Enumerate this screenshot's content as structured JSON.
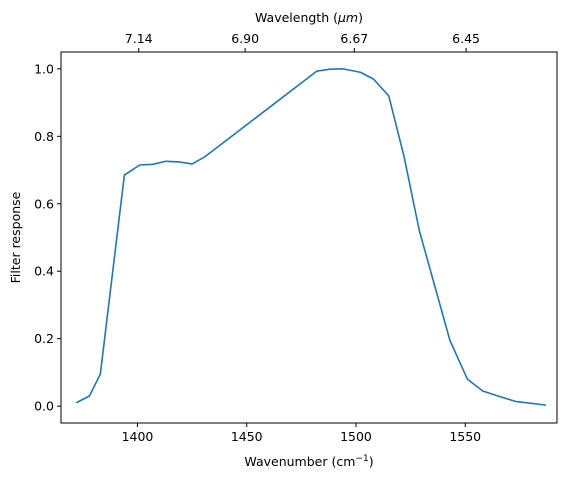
{
  "chart_data": {
    "type": "line",
    "xlabel": "Wavenumber (cm",
    "xlabel_sup": "−1",
    "xlabel_close": ")",
    "ylabel": "Filter response",
    "top_xlabel_prefix": "Wavelength (",
    "top_xlabel_unit": "μm",
    "top_xlabel_suffix": ")",
    "xlim": [
      1365,
      1592
    ],
    "ylim": [
      -0.05,
      1.05
    ],
    "x_ticks": [
      1400,
      1450,
      1500,
      1550
    ],
    "x_tick_labels": [
      "1400",
      "1450",
      "1500",
      "1550"
    ],
    "y_ticks": [
      0.0,
      0.2,
      0.4,
      0.6,
      0.8,
      1.0
    ],
    "y_tick_labels": [
      "0.0",
      "0.2",
      "0.4",
      "0.6",
      "0.8",
      "1.0"
    ],
    "top_ticks": [
      7.14,
      6.9,
      6.67,
      6.45
    ],
    "top_tick_labels": [
      "7.14",
      "6.90",
      "6.67",
      "6.45"
    ],
    "line_color": "#1f77b4",
    "grid": false,
    "series": [
      {
        "x": [
          1372,
          1378,
          1383,
          1394,
          1401,
          1407,
          1413,
          1419,
          1425,
          1431,
          1482,
          1488,
          1494,
          1502,
          1508,
          1515,
          1522,
          1529,
          1543,
          1551,
          1558,
          1565,
          1573,
          1587
        ],
        "y": [
          0.01,
          0.03,
          0.095,
          0.685,
          0.715,
          0.717,
          0.726,
          0.724,
          0.718,
          0.74,
          0.993,
          0.999,
          1.0,
          0.99,
          0.97,
          0.92,
          0.74,
          0.52,
          0.195,
          0.08,
          0.045,
          0.03,
          0.014,
          0.003
        ]
      }
    ]
  }
}
